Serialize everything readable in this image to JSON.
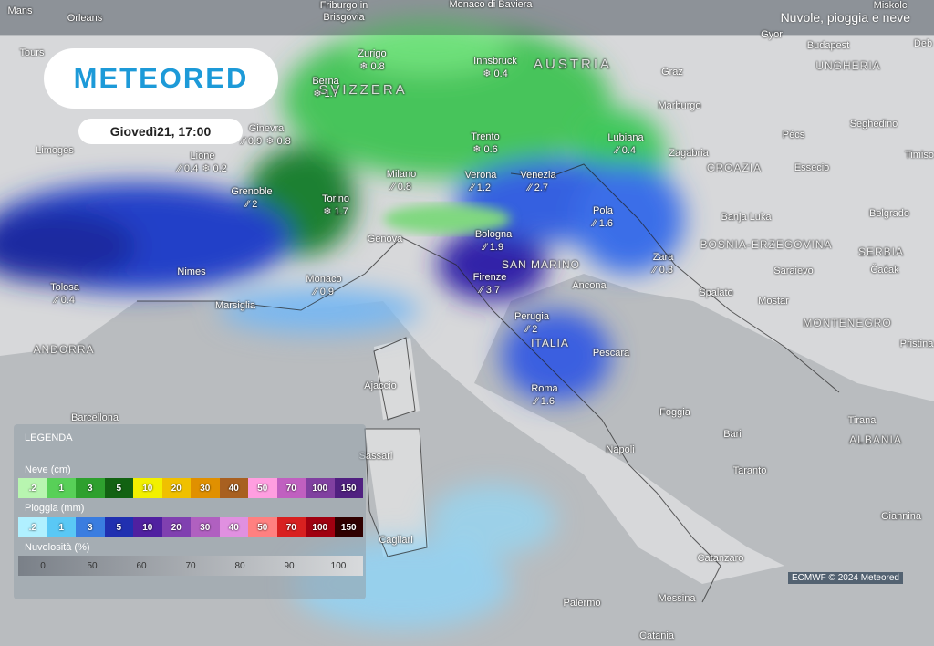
{
  "header": {
    "title": "Nuvole, pioggia e neve",
    "logo": "METEORED",
    "datetime": "Giovedì21, 17:00"
  },
  "cities": [
    {
      "name": "Zurigo",
      "readings": [
        {
          "kind": "snow",
          "value": 0.8
        }
      ]
    },
    {
      "name": "Berna",
      "readings": [
        {
          "kind": "snow",
          "value": 1.7
        }
      ]
    },
    {
      "name": "Innsbruck",
      "readings": [
        {
          "kind": "snow",
          "value": 0.4
        }
      ]
    },
    {
      "name": "Ginevra",
      "readings": [
        {
          "kind": "rain",
          "value": 0.9
        },
        {
          "kind": "snow",
          "value": 0.8
        }
      ]
    },
    {
      "name": "Lione",
      "readings": [
        {
          "kind": "rain",
          "value": 0.4
        },
        {
          "kind": "snow",
          "value": 0.2
        }
      ]
    },
    {
      "name": "Grenoble",
      "readings": [
        {
          "kind": "rain",
          "value": 2
        }
      ]
    },
    {
      "name": "Milano",
      "readings": [
        {
          "kind": "rain",
          "value": 0.8
        }
      ]
    },
    {
      "name": "Trento",
      "readings": [
        {
          "kind": "snow",
          "value": 0.6
        }
      ]
    },
    {
      "name": "Verona",
      "readings": [
        {
          "kind": "rain",
          "value": 1.2
        }
      ]
    },
    {
      "name": "Venezia",
      "readings": [
        {
          "kind": "rain",
          "value": 2.7
        }
      ]
    },
    {
      "name": "Lubiana",
      "readings": [
        {
          "kind": "rain",
          "value": 0.4
        }
      ]
    },
    {
      "name": "Torino",
      "readings": [
        {
          "kind": "snow",
          "value": 1.7
        }
      ]
    },
    {
      "name": "Bologna",
      "readings": [
        {
          "kind": "rain",
          "value": 1.9
        }
      ]
    },
    {
      "name": "Pola",
      "readings": [
        {
          "kind": "rain",
          "value": 1.6
        }
      ]
    },
    {
      "name": "Zara",
      "readings": [
        {
          "kind": "rain",
          "value": 0.3
        }
      ]
    },
    {
      "name": "Monaco",
      "readings": [
        {
          "kind": "rain",
          "value": 0.9
        }
      ]
    },
    {
      "name": "Firenze",
      "readings": [
        {
          "kind": "rain",
          "value": 3.7
        }
      ]
    },
    {
      "name": "Tolosa",
      "readings": [
        {
          "kind": "rain",
          "value": 0.4
        }
      ]
    },
    {
      "name": "Perugia",
      "readings": [
        {
          "kind": "rain",
          "value": 2
        }
      ]
    },
    {
      "name": "Roma",
      "readings": [
        {
          "kind": "rain",
          "value": 1.6
        }
      ]
    }
  ],
  "places": [
    "Mans",
    "Orleans",
    "Friburgo in Brisgovia",
    "Monaco di Baviera",
    "Miskolc",
    "Gyor",
    "Budapest",
    "Deb",
    "Tours",
    "Graz",
    "UNGHERIA",
    "Marburgo",
    "Seghedino",
    "Pécs",
    "Timiso",
    "Zagabria",
    "Limoges",
    "CROAZIA",
    "Essecio",
    "Banja Luka",
    "Belgrado",
    "Genova",
    "BOSNIA-ERZEGOVINA",
    "SERBIA",
    "Nimes",
    "SAN MARINO",
    "Saraievo",
    "Čačak",
    "Marsiglia",
    "Ancona",
    "Spalato",
    "Mostar",
    "MONTENEGRO",
    "ANDORRA",
    "Pristina",
    "ITALIA",
    "Pescara",
    "Ajaccio",
    "Barcellona",
    "Foggia",
    "Bari",
    "Tirana",
    "ALBANIA",
    "Sassari",
    "Napoli",
    "Taranto",
    "Cagliari",
    "Catanzaro",
    "Giannina",
    "Palermo",
    "Messina",
    "Catania",
    "SVIZZERA",
    "AUSTRIA"
  ],
  "legend": {
    "title": "LEGENDA",
    "snow": {
      "label": "Neve (cm)",
      "steps": [
        {
          "label": ".2",
          "color": "#b8f5b0"
        },
        {
          "label": "1",
          "color": "#58d058"
        },
        {
          "label": "3",
          "color": "#2ea02e"
        },
        {
          "label": "5",
          "color": "#126212"
        },
        {
          "label": "10",
          "color": "#f2f000"
        },
        {
          "label": "20",
          "color": "#f0c000"
        },
        {
          "label": "30",
          "color": "#e09000"
        },
        {
          "label": "40",
          "color": "#a86020"
        },
        {
          "label": "50",
          "color": "#ff9ee0"
        },
        {
          "label": "70",
          "color": "#c060c0"
        },
        {
          "label": "100",
          "color": "#8040a0"
        },
        {
          "label": "150",
          "color": "#502080"
        }
      ]
    },
    "rain": {
      "label": "Pioggia (mm)",
      "steps": [
        {
          "label": ".2",
          "color": "#b0f0ff"
        },
        {
          "label": "1",
          "color": "#5ac8f5"
        },
        {
          "label": "3",
          "color": "#3a7de0"
        },
        {
          "label": "5",
          "color": "#2030b0"
        },
        {
          "label": "10",
          "color": "#5020a0"
        },
        {
          "label": "20",
          "color": "#8040b0"
        },
        {
          "label": "30",
          "color": "#b060c0"
        },
        {
          "label": "40",
          "color": "#e090e0"
        },
        {
          "label": "50",
          "color": "#ff8080"
        },
        {
          "label": "70",
          "color": "#d82020"
        },
        {
          "label": "100",
          "color": "#a00010"
        },
        {
          "label": "150",
          "color": "#300000"
        }
      ]
    },
    "clouds": {
      "label": "Nuvolosità (%)",
      "steps": [
        "0",
        "50",
        "60",
        "70",
        "80",
        "90",
        "100"
      ]
    }
  },
  "credit": "ECMWF © 2024 Meteored"
}
